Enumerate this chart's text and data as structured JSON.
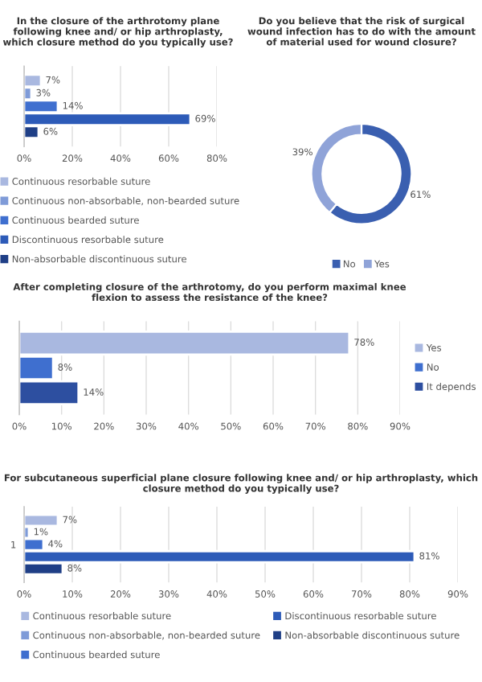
{
  "chart_data": [
    {
      "type": "bar",
      "orientation": "horizontal",
      "title": "In the closure of the arthrotomy plane following knee and/ or hip arthroplasty, which closure method do you typically use?",
      "categories": [
        null
      ],
      "series": [
        {
          "name": "Continuous resorbable suture",
          "color": "#a9b8e0",
          "values": [
            7
          ],
          "value_labels": [
            "7%"
          ]
        },
        {
          "name": "Continuous non-absorbable, non-bearded suture",
          "color": "#7f9bd8",
          "values": [
            3
          ],
          "value_labels": [
            "3%"
          ]
        },
        {
          "name": "Continuous bearded suture",
          "color": "#3f6fcf",
          "values": [
            14
          ],
          "value_labels": [
            "14%"
          ]
        },
        {
          "name": "Discontinuous resorbable suture",
          "color": "#2d5bb8",
          "values": [
            69
          ],
          "value_labels": [
            "69%"
          ]
        },
        {
          "name": "Non-absorbable discontinuous suture",
          "color": "#1f3f86",
          "values": [
            6
          ],
          "value_labels": [
            "6%"
          ]
        }
      ],
      "xlim": [
        0,
        80
      ],
      "xticks": [
        {
          "value": 0,
          "label": "0%"
        },
        {
          "value": 20,
          "label": "20%"
        },
        {
          "value": 40,
          "label": "40%"
        },
        {
          "value": 60,
          "label": "60%"
        },
        {
          "value": 80,
          "label": "80%"
        }
      ],
      "grid": "x",
      "legend": "bottom"
    },
    {
      "type": "donut",
      "title": "Do you believe that the risk of surgical wound infection has to do with the amount of material used for wound closure?",
      "categories": [
        "No",
        "Yes"
      ],
      "values": [
        61,
        39
      ],
      "colors": [
        "#3a5fb0",
        "#8fa3d8"
      ],
      "value_labels": [
        "61%",
        "39%"
      ],
      "legend": "bottom"
    },
    {
      "type": "bar",
      "orientation": "horizontal",
      "title": "After completing closure of the arthrotomy, do you perform maximal knee flexion to assess the resistance of the knee?",
      "categories": [
        null
      ],
      "series": [
        {
          "name": "Yes",
          "color": "#a9b8e0",
          "values": [
            78
          ],
          "value_labels": [
            "78%"
          ]
        },
        {
          "name": "No",
          "color": "#3f6fcf",
          "values": [
            8
          ],
          "value_labels": [
            "8%"
          ]
        },
        {
          "name": "It depends",
          "color": "#2d4fa0",
          "values": [
            14
          ],
          "value_labels": [
            "14%"
          ]
        }
      ],
      "xlim": [
        0,
        90
      ],
      "xticks": [
        {
          "value": 0,
          "label": "0%"
        },
        {
          "value": 10,
          "label": "10%"
        },
        {
          "value": 20,
          "label": "20%"
        },
        {
          "value": 30,
          "label": "30%"
        },
        {
          "value": 40,
          "label": "40%"
        },
        {
          "value": 50,
          "label": "50%"
        },
        {
          "value": 60,
          "label": "60%"
        },
        {
          "value": 70,
          "label": "70%"
        },
        {
          "value": 80,
          "label": "80%"
        },
        {
          "value": 90,
          "label": "90%"
        }
      ],
      "grid": "x",
      "legend": "right"
    },
    {
      "type": "bar",
      "orientation": "horizontal",
      "title": "For subcutaneous superficial plane closure following knee and/ or hip arthroplasty, which closure method do you typically use?",
      "categories": [
        "1"
      ],
      "series": [
        {
          "name": "Continuous resorbable suture",
          "color": "#a9b8e0",
          "values": [
            7
          ],
          "value_labels": [
            "7%"
          ]
        },
        {
          "name": "Continuous non-absorbable, non-bearded suture",
          "color": "#7f9bd8",
          "values": [
            1
          ],
          "value_labels": [
            "1%"
          ]
        },
        {
          "name": "Continuous bearded suture",
          "color": "#3f6fcf",
          "values": [
            4
          ],
          "value_labels": [
            "4%"
          ]
        },
        {
          "name": "Discontinuous resorbable suture",
          "color": "#2d5bb8",
          "values": [
            81
          ],
          "value_labels": [
            "81%"
          ]
        },
        {
          "name": "Non-absorbable discontinuous suture",
          "color": "#1f3f86",
          "values": [
            8
          ],
          "value_labels": [
            "8%"
          ]
        }
      ],
      "xlim": [
        0,
        90
      ],
      "xticks": [
        {
          "value": 0,
          "label": "0%"
        },
        {
          "value": 10,
          "label": "10%"
        },
        {
          "value": 20,
          "label": "20%"
        },
        {
          "value": 30,
          "label": "30%"
        },
        {
          "value": 40,
          "label": "40%"
        },
        {
          "value": 50,
          "label": "50%"
        },
        {
          "value": 60,
          "label": "60%"
        },
        {
          "value": 70,
          "label": "70%"
        },
        {
          "value": 80,
          "label": "80%"
        },
        {
          "value": 90,
          "label": "90%"
        }
      ],
      "grid": "x",
      "legend": "bottom"
    }
  ]
}
